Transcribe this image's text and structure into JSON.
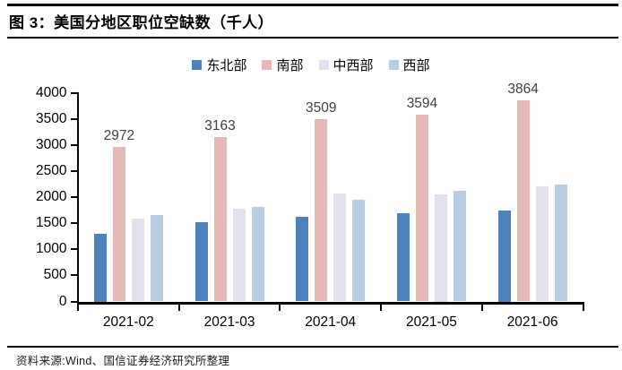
{
  "figure": {
    "title": "图 3：美国分地区职位空缺数（千人）",
    "source": "资料来源:Wind、国信证券经济研究所整理"
  },
  "chart_data": {
    "type": "bar",
    "title": "图 3：美国分地区职位空缺数（千人）",
    "categories": [
      "2021-02",
      "2021-03",
      "2021-04",
      "2021-05",
      "2021-06"
    ],
    "series": [
      {
        "key": "northeast",
        "name": "东北部",
        "color": "#4F81BD",
        "values": [
          1300,
          1520,
          1630,
          1690,
          1750
        ]
      },
      {
        "key": "south",
        "name": "南部",
        "color": "#E6B8B7",
        "values": [
          2972,
          3163,
          3509,
          3594,
          3864
        ],
        "data_labels": true
      },
      {
        "key": "midwest",
        "name": "中西部",
        "color": "#E4DFEC",
        "values": [
          1590,
          1780,
          2070,
          2050,
          2210
        ]
      },
      {
        "key": "west",
        "name": "西部",
        "color": "#B8CCE4",
        "values": [
          1660,
          1810,
          1960,
          2120,
          2240
        ]
      }
    ],
    "xlabel": "",
    "ylabel": "",
    "ylim": [
      0,
      4000
    ],
    "yticks": [
      0,
      500,
      1000,
      1500,
      2000,
      2500,
      3000,
      3500,
      4000
    ],
    "legend_position": "top",
    "grid": false,
    "data_label_color": "#404040",
    "axis_color": "#000000"
  }
}
